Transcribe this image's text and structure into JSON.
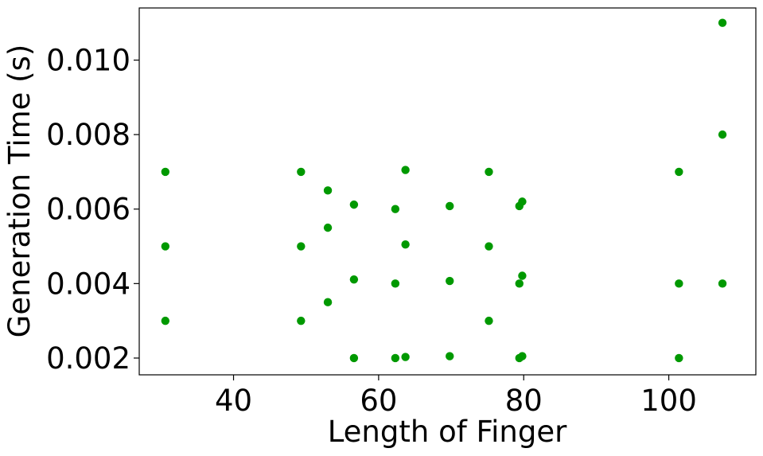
{
  "chart_data": {
    "type": "scatter",
    "title": "",
    "xlabel": "Length of Finger",
    "ylabel": "Generation Time (s)",
    "xlim": [
      27,
      112
    ],
    "ylim": [
      0.00155,
      0.0114
    ],
    "xticks": [
      40,
      60,
      80,
      100
    ],
    "xtick_labels": [
      "40",
      "60",
      "80",
      "100"
    ],
    "yticks": [
      0.002,
      0.004,
      0.006,
      0.008,
      0.01
    ],
    "ytick_labels": [
      "0.002",
      "0.004",
      "0.006",
      "0.008",
      "0.010"
    ],
    "grid": false,
    "marker_color": "#009900",
    "series": [
      {
        "points": [
          {
            "x": 30.6,
            "y": 0.007
          },
          {
            "x": 30.6,
            "y": 0.005
          },
          {
            "x": 30.6,
            "y": 0.003
          },
          {
            "x": 49.3,
            "y": 0.007
          },
          {
            "x": 49.3,
            "y": 0.005
          },
          {
            "x": 49.3,
            "y": 0.003
          },
          {
            "x": 53.0,
            "y": 0.0065
          },
          {
            "x": 53.0,
            "y": 0.0055
          },
          {
            "x": 53.0,
            "y": 0.0035
          },
          {
            "x": 56.6,
            "y": 0.00612
          },
          {
            "x": 56.6,
            "y": 0.00411
          },
          {
            "x": 56.6,
            "y": 0.002
          },
          {
            "x": 62.3,
            "y": 0.006
          },
          {
            "x": 62.3,
            "y": 0.004
          },
          {
            "x": 62.3,
            "y": 0.002
          },
          {
            "x": 63.7,
            "y": 0.00705
          },
          {
            "x": 63.7,
            "y": 0.00505
          },
          {
            "x": 63.7,
            "y": 0.00203
          },
          {
            "x": 69.8,
            "y": 0.00608
          },
          {
            "x": 69.8,
            "y": 0.00407
          },
          {
            "x": 69.8,
            "y": 0.00205
          },
          {
            "x": 75.2,
            "y": 0.007
          },
          {
            "x": 75.2,
            "y": 0.005
          },
          {
            "x": 75.2,
            "y": 0.003
          },
          {
            "x": 79.4,
            "y": 0.00608
          },
          {
            "x": 79.4,
            "y": 0.004
          },
          {
            "x": 79.4,
            "y": 0.002
          },
          {
            "x": 79.8,
            "y": 0.0062
          },
          {
            "x": 79.8,
            "y": 0.00421
          },
          {
            "x": 79.8,
            "y": 0.00205
          },
          {
            "x": 101.4,
            "y": 0.007
          },
          {
            "x": 101.4,
            "y": 0.004
          },
          {
            "x": 101.4,
            "y": 0.002
          },
          {
            "x": 107.4,
            "y": 0.011
          },
          {
            "x": 107.4,
            "y": 0.008
          },
          {
            "x": 107.4,
            "y": 0.004
          }
        ]
      }
    ]
  }
}
